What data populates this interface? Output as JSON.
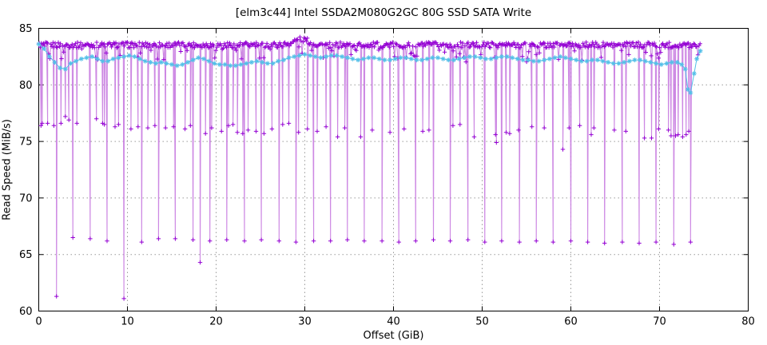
{
  "chart_data": {
    "type": "line",
    "title": "[elm3c44] Intel SSDA2M080G2GC 80G SSD SATA Write",
    "xlabel": "Offset (GiB)",
    "ylabel": "Read Speed (MiB/s)",
    "xlim": [
      0,
      80
    ],
    "ylim": [
      60,
      85
    ],
    "xticks": [
      0,
      10,
      20,
      30,
      40,
      50,
      60,
      70,
      80
    ],
    "yticks": [
      60,
      65,
      70,
      75,
      80,
      85
    ],
    "grid": "dotted",
    "legend": "none",
    "background": "#ffffff",
    "border_color": "#000000",
    "grid_color": "#9a9a9a",
    "series": [
      {
        "name": "block-read-speed",
        "marker": "plus",
        "marker_color": "#9400d3",
        "line_color": "#c87be0",
        "baseline": {
          "x_start": 0.05,
          "x_end": 74.65,
          "step": 0.12,
          "y": 83.28,
          "jitter": 0.5,
          "hair_threshold": 0.86,
          "hair_scale": 10,
          "bump_x": 29.6,
          "bump_amp": 0.5,
          "bump_width": 0.85
        },
        "spikes": [
          [
            0.25,
            76.4
          ],
          [
            0.4,
            76.6
          ],
          [
            1.0,
            76.6
          ],
          [
            1.7,
            76.4
          ],
          [
            2.0,
            61.3
          ],
          [
            2.5,
            76.6
          ],
          [
            3.0,
            77.2
          ],
          [
            3.4,
            76.9
          ],
          [
            3.85,
            66.5
          ],
          [
            4.3,
            76.6
          ],
          [
            5.8,
            66.4
          ],
          [
            6.5,
            77.0
          ],
          [
            7.2,
            76.6
          ],
          [
            7.4,
            76.5
          ],
          [
            7.7,
            66.2
          ],
          [
            8.6,
            76.3
          ],
          [
            9.0,
            76.5
          ],
          [
            9.6,
            61.1
          ],
          [
            10.4,
            76.1
          ],
          [
            11.2,
            76.3
          ],
          [
            11.6,
            66.1
          ],
          [
            12.3,
            76.2
          ],
          [
            13.1,
            76.4
          ],
          [
            13.5,
            66.4
          ],
          [
            14.3,
            76.2
          ],
          [
            15.2,
            76.3
          ],
          [
            15.4,
            66.4
          ],
          [
            16.5,
            76.1
          ],
          [
            17.1,
            76.4
          ],
          [
            17.4,
            66.3
          ],
          [
            18.2,
            64.3
          ],
          [
            18.8,
            75.7
          ],
          [
            19.3,
            66.2
          ],
          [
            19.5,
            76.2
          ],
          [
            20.6,
            75.9
          ],
          [
            21.2,
            66.3
          ],
          [
            21.4,
            76.4
          ],
          [
            21.9,
            76.5
          ],
          [
            22.4,
            75.8
          ],
          [
            23.0,
            75.7
          ],
          [
            23.2,
            66.2
          ],
          [
            23.6,
            76.0
          ],
          [
            24.5,
            75.9
          ],
          [
            25.1,
            66.3
          ],
          [
            25.4,
            75.7
          ],
          [
            26.3,
            76.1
          ],
          [
            27.1,
            66.2
          ],
          [
            27.5,
            76.5
          ],
          [
            28.2,
            76.6
          ],
          [
            29.0,
            66.1
          ],
          [
            29.3,
            75.8
          ],
          [
            30.3,
            76.1
          ],
          [
            31.0,
            66.2
          ],
          [
            31.4,
            75.9
          ],
          [
            32.4,
            76.3
          ],
          [
            32.9,
            66.2
          ],
          [
            33.7,
            75.4
          ],
          [
            34.5,
            76.2
          ],
          [
            34.8,
            66.3
          ],
          [
            36.3,
            75.4
          ],
          [
            36.7,
            66.2
          ],
          [
            37.6,
            76.0
          ],
          [
            38.7,
            66.2
          ],
          [
            39.6,
            75.8
          ],
          [
            40.6,
            66.1
          ],
          [
            41.2,
            76.1
          ],
          [
            42.5,
            66.2
          ],
          [
            43.3,
            75.9
          ],
          [
            44.0,
            76.0
          ],
          [
            44.5,
            66.3
          ],
          [
            46.4,
            66.2
          ],
          [
            46.7,
            76.4
          ],
          [
            47.5,
            76.5
          ],
          [
            48.4,
            66.3
          ],
          [
            49.1,
            75.4
          ],
          [
            50.3,
            66.1
          ],
          [
            51.5,
            75.6
          ],
          [
            51.6,
            74.9
          ],
          [
            52.2,
            66.2
          ],
          [
            52.7,
            75.8
          ],
          [
            53.1,
            75.7
          ],
          [
            54.1,
            76.0
          ],
          [
            54.2,
            66.1
          ],
          [
            55.6,
            76.3
          ],
          [
            56.1,
            66.2
          ],
          [
            57.0,
            76.2
          ],
          [
            58.0,
            66.1
          ],
          [
            59.1,
            74.3
          ],
          [
            59.8,
            76.2
          ],
          [
            60.0,
            66.2
          ],
          [
            61.0,
            76.4
          ],
          [
            61.9,
            66.1
          ],
          [
            62.3,
            75.6
          ],
          [
            62.6,
            76.2
          ],
          [
            63.8,
            66.0
          ],
          [
            64.9,
            76.0
          ],
          [
            65.8,
            66.1
          ],
          [
            66.2,
            75.9
          ],
          [
            67.7,
            66.0
          ],
          [
            68.3,
            75.3
          ],
          [
            69.1,
            75.3
          ],
          [
            69.6,
            66.1
          ],
          [
            69.9,
            76.1
          ],
          [
            71.0,
            76.0
          ],
          [
            71.3,
            75.5
          ],
          [
            71.6,
            65.9
          ],
          [
            71.8,
            75.5
          ],
          [
            72.1,
            75.6
          ],
          [
            72.6,
            75.4
          ],
          [
            73.0,
            75.6
          ],
          [
            73.3,
            75.9
          ],
          [
            73.5,
            66.1
          ]
        ]
      },
      {
        "name": "moving-average",
        "marker": "asterisk",
        "color": "#53bfe8",
        "points": [
          [
            0,
            83.6
          ],
          [
            0.6,
            83.2
          ],
          [
            1.2,
            82.5
          ],
          [
            1.8,
            82.0
          ],
          [
            2.4,
            81.5
          ],
          [
            3.0,
            81.4
          ],
          [
            3.6,
            81.9
          ],
          [
            4.2,
            82.1
          ],
          [
            4.8,
            82.3
          ],
          [
            5.4,
            82.4
          ],
          [
            6.0,
            82.5
          ],
          [
            6.6,
            82.3
          ],
          [
            7.2,
            82.1
          ],
          [
            7.8,
            82.1
          ],
          [
            8.4,
            82.3
          ],
          [
            9.0,
            82.4
          ],
          [
            9.6,
            82.5
          ],
          [
            10.2,
            82.6
          ],
          [
            10.8,
            82.5
          ],
          [
            11.4,
            82.3
          ],
          [
            12.0,
            82.1
          ],
          [
            12.6,
            82.0
          ],
          [
            13.2,
            81.9
          ],
          [
            13.8,
            82.0
          ],
          [
            14.4,
            81.9
          ],
          [
            15.0,
            81.8
          ],
          [
            15.6,
            81.7
          ],
          [
            16.2,
            81.8
          ],
          [
            16.8,
            82.0
          ],
          [
            17.4,
            82.2
          ],
          [
            18.0,
            82.4
          ],
          [
            18.6,
            82.3
          ],
          [
            19.2,
            82.1
          ],
          [
            19.8,
            81.9
          ],
          [
            20.4,
            81.8
          ],
          [
            21.0,
            81.8
          ],
          [
            21.6,
            81.7
          ],
          [
            22.2,
            81.7
          ],
          [
            22.8,
            81.8
          ],
          [
            23.4,
            81.9
          ],
          [
            24.0,
            82.0
          ],
          [
            24.6,
            82.1
          ],
          [
            25.2,
            82.0
          ],
          [
            25.8,
            81.9
          ],
          [
            26.4,
            81.9
          ],
          [
            27.0,
            82.1
          ],
          [
            27.6,
            82.2
          ],
          [
            28.2,
            82.4
          ],
          [
            28.8,
            82.5
          ],
          [
            29.4,
            82.6
          ],
          [
            30.0,
            82.7
          ],
          [
            30.6,
            82.6
          ],
          [
            31.2,
            82.5
          ],
          [
            31.8,
            82.4
          ],
          [
            32.4,
            82.5
          ],
          [
            33.0,
            82.6
          ],
          [
            33.6,
            82.6
          ],
          [
            34.2,
            82.5
          ],
          [
            34.8,
            82.4
          ],
          [
            35.4,
            82.3
          ],
          [
            36.0,
            82.2
          ],
          [
            36.6,
            82.3
          ],
          [
            37.2,
            82.4
          ],
          [
            37.8,
            82.4
          ],
          [
            38.4,
            82.3
          ],
          [
            39.0,
            82.2
          ],
          [
            39.6,
            82.2
          ],
          [
            40.2,
            82.3
          ],
          [
            40.8,
            82.4
          ],
          [
            41.4,
            82.4
          ],
          [
            42.0,
            82.3
          ],
          [
            42.6,
            82.2
          ],
          [
            43.2,
            82.2
          ],
          [
            43.8,
            82.3
          ],
          [
            44.4,
            82.4
          ],
          [
            45.0,
            82.4
          ],
          [
            45.6,
            82.3
          ],
          [
            46.2,
            82.2
          ],
          [
            46.8,
            82.2
          ],
          [
            47.4,
            82.3
          ],
          [
            48.0,
            82.4
          ],
          [
            48.6,
            82.5
          ],
          [
            49.2,
            82.5
          ],
          [
            49.8,
            82.4
          ],
          [
            50.4,
            82.3
          ],
          [
            51.0,
            82.3
          ],
          [
            51.6,
            82.4
          ],
          [
            52.2,
            82.5
          ],
          [
            52.8,
            82.5
          ],
          [
            53.4,
            82.4
          ],
          [
            54.0,
            82.3
          ],
          [
            54.6,
            82.2
          ],
          [
            55.2,
            82.2
          ],
          [
            55.8,
            82.1
          ],
          [
            56.4,
            82.1
          ],
          [
            57.0,
            82.2
          ],
          [
            57.6,
            82.3
          ],
          [
            58.2,
            82.4
          ],
          [
            58.8,
            82.5
          ],
          [
            59.4,
            82.4
          ],
          [
            60.0,
            82.3
          ],
          [
            60.6,
            82.2
          ],
          [
            61.2,
            82.1
          ],
          [
            61.8,
            82.1
          ],
          [
            62.4,
            82.2
          ],
          [
            63.0,
            82.2
          ],
          [
            63.6,
            82.1
          ],
          [
            64.2,
            82.0
          ],
          [
            64.8,
            81.9
          ],
          [
            65.4,
            81.9
          ],
          [
            66.0,
            82.0
          ],
          [
            66.6,
            82.1
          ],
          [
            67.2,
            82.2
          ],
          [
            67.8,
            82.2
          ],
          [
            68.4,
            82.1
          ],
          [
            69.0,
            82.0
          ],
          [
            69.6,
            81.9
          ],
          [
            70.2,
            81.8
          ],
          [
            70.8,
            81.9
          ],
          [
            71.4,
            82.0
          ],
          [
            72.0,
            82.0
          ],
          [
            72.5,
            81.8
          ],
          [
            72.9,
            81.4
          ],
          [
            73.2,
            79.6
          ],
          [
            73.5,
            79.3
          ],
          [
            73.9,
            81.0
          ],
          [
            74.2,
            82.3
          ],
          [
            74.6,
            83.0
          ]
        ]
      }
    ]
  }
}
